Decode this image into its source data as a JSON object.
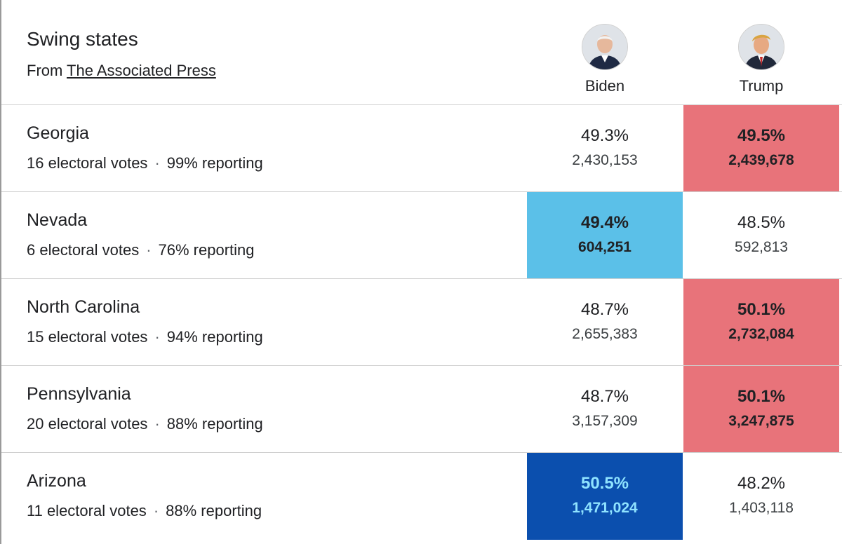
{
  "header": {
    "title": "Swing states",
    "source_prefix": "From",
    "source_link": "The Associated Press"
  },
  "candidates": [
    {
      "name": "Biden",
      "icon": "person-avatar-icon"
    },
    {
      "name": "Trump",
      "icon": "person-avatar-icon"
    }
  ],
  "colors": {
    "biden_lead_light": "#5bc0e8",
    "biden_lead_dark": "#0b4fae",
    "trump_lead": "#e8737a"
  },
  "rows": [
    {
      "state": "Georgia",
      "electoral": "16 electoral votes",
      "reporting": "99% reporting",
      "biden": {
        "pct": "49.3%",
        "votes": "2,430,153"
      },
      "trump": {
        "pct": "49.5%",
        "votes": "2,439,678"
      },
      "leader": "trump"
    },
    {
      "state": "Nevada",
      "electoral": "6 electoral votes",
      "reporting": "76% reporting",
      "biden": {
        "pct": "49.4%",
        "votes": "604,251"
      },
      "trump": {
        "pct": "48.5%",
        "votes": "592,813"
      },
      "leader": "biden"
    },
    {
      "state": "North Carolina",
      "electoral": "15 electoral votes",
      "reporting": "94% reporting",
      "biden": {
        "pct": "48.7%",
        "votes": "2,655,383"
      },
      "trump": {
        "pct": "50.1%",
        "votes": "2,732,084"
      },
      "leader": "trump"
    },
    {
      "state": "Pennsylvania",
      "electoral": "20 electoral votes",
      "reporting": "88% reporting",
      "biden": {
        "pct": "48.7%",
        "votes": "3,157,309"
      },
      "trump": {
        "pct": "50.1%",
        "votes": "3,247,875"
      },
      "leader": "trump"
    },
    {
      "state": "Arizona",
      "electoral": "11 electoral votes",
      "reporting": "88% reporting",
      "biden": {
        "pct": "50.5%",
        "votes": "1,471,024"
      },
      "trump": {
        "pct": "48.2%",
        "votes": "1,403,118"
      },
      "leader": "biden-called"
    }
  ]
}
